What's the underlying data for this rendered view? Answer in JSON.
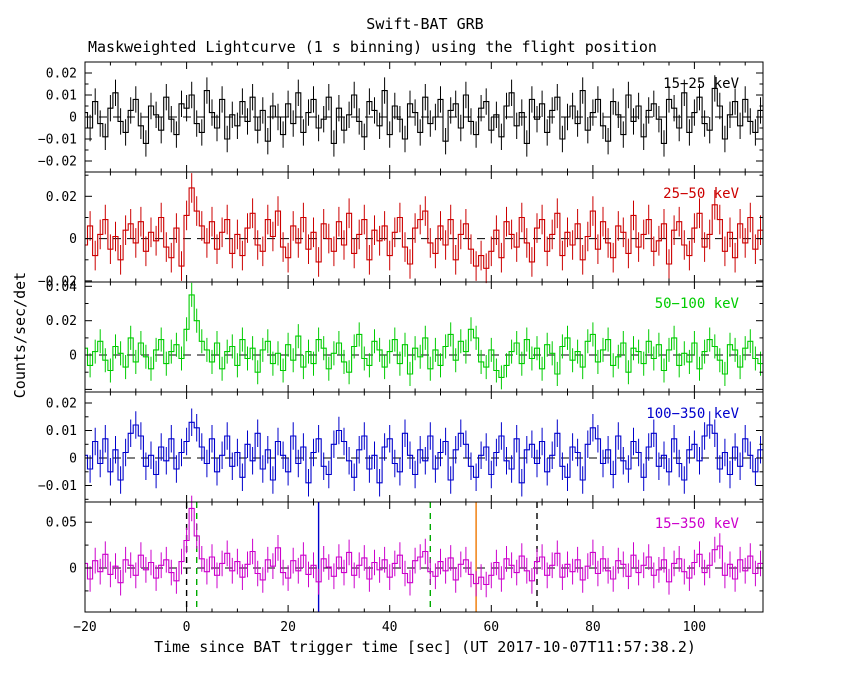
{
  "chart_data": {
    "type": "line",
    "title": "Swift-BAT GRB",
    "subtitle": "Maskweighted Lightcurve (1 s binning) using the flight position",
    "xlabel": "Time since BAT trigger time [sec] (UT 2017-10-07T11:57:38.2)",
    "ylabel": "Counts/sec/det",
    "xlim": [
      -20,
      113.5
    ],
    "x_start": -20,
    "x_step": 1,
    "x_major_ticks": [
      -20,
      0,
      20,
      40,
      60,
      80,
      100
    ],
    "x_minor_step": 5,
    "frame_color": "#000000",
    "zero_line": "dashed",
    "panels": [
      {
        "label": "15-25 keV",
        "color": "#000000",
        "ylim": [
          -0.025,
          0.025
        ],
        "yticks": [
          -0.02,
          -0.01,
          0,
          0.01,
          0.02
        ],
        "err": 0.006,
        "values": [
          0.002,
          -0.005,
          0.007,
          -0.003,
          -0.009,
          0.004,
          0.011,
          -0.002,
          -0.007,
          0.003,
          0.008,
          -0.004,
          -0.012,
          0.005,
          0.001,
          -0.006,
          0.009,
          -0.001,
          -0.008,
          0.006,
          0.004,
          0.01,
          -0.003,
          -0.007,
          0.012,
          0.002,
          -0.005,
          0.008,
          -0.01,
          0.001,
          -0.004,
          0.007,
          -0.002,
          0.009,
          -0.006,
          0.003,
          -0.011,
          0.005,
          0,
          -0.008,
          0.006,
          -0.003,
          0.011,
          -0.007,
          0.002,
          0.008,
          -0.005,
          -0.001,
          0.009,
          -0.012,
          0.004,
          -0.006,
          0.001,
          0.01,
          -0.002,
          -0.009,
          0.007,
          0.003,
          -0.004,
          0.012,
          -0.008,
          0.005,
          -0.001,
          -0.01,
          0.006,
          0.002,
          -0.007,
          0.009,
          -0.003,
          0,
          0.008,
          -0.011,
          0.003,
          0.006,
          -0.005,
          0.01,
          -0.002,
          -0.008,
          0.004,
          0.007,
          -0.006,
          0.001,
          -0.009,
          0.005,
          0.011,
          -0.004,
          0.002,
          -0.012,
          0.008,
          -0.001,
          0.006,
          -0.007,
          0.003,
          0.009,
          -0.01,
          0,
          0.005,
          -0.003,
          0.012,
          -0.006,
          0.002,
          0.008,
          -0.004,
          -0.011,
          0.007,
          0.001,
          -0.008,
          0.01,
          -0.002,
          0.005,
          -0.009,
          0.003,
          0.006,
          -0.001,
          -0.012,
          0.008,
          0.004,
          -0.005,
          0.011,
          -0.007,
          0.002,
          0.009,
          -0.003,
          -0.006,
          0.013,
          0.005,
          -0.01,
          0.001,
          0.007,
          -0.004,
          0.008,
          -0.002,
          -0.007,
          0.003
        ]
      },
      {
        "label": "25-50 keV",
        "color": "#cc0000",
        "ylim": [
          -0.0205,
          0.0315
        ],
        "yticks": [
          -0.02,
          0,
          0.02
        ],
        "err": 0.007,
        "values": [
          -0.003,
          0.006,
          -0.008,
          0.002,
          0.009,
          -0.005,
          0.001,
          -0.01,
          0.004,
          0.007,
          -0.002,
          0.008,
          -0.006,
          0.003,
          -0.001,
          0.01,
          -0.004,
          -0.009,
          0.005,
          -0.013,
          0.011,
          0.024,
          0.013,
          0.006,
          -0.002,
          0.008,
          -0.005,
          0.003,
          0.009,
          -0.007,
          0.002,
          -0.008,
          0.005,
          0.012,
          -0.003,
          -0.006,
          0.009,
          0.001,
          0.013,
          -0.004,
          -0.009,
          0.006,
          -0.002,
          0.01,
          -0.005,
          0.003,
          -0.011,
          0.007,
          0,
          -0.006,
          0.008,
          -0.003,
          0.012,
          -0.007,
          0.002,
          0.009,
          -0.01,
          0.004,
          -0.001,
          0.006,
          -0.008,
          0.003,
          0.01,
          -0.004,
          -0.012,
          0.005,
          0.009,
          0.013,
          -0.002,
          -0.007,
          0.006,
          -0.003,
          0.009,
          -0.01,
          0.002,
          0.007,
          -0.005,
          -0.013,
          -0.008,
          -0.014,
          -0.006,
          0.004,
          -0.009,
          0.008,
          0.002,
          -0.004,
          0.01,
          -0.002,
          -0.011,
          0.005,
          0.009,
          -0.006,
          0.002,
          0.012,
          -0.008,
          0.003,
          -0.003,
          0.007,
          -0.01,
          0.001,
          0.013,
          -0.005,
          0.008,
          -0.002,
          -0.009,
          0.006,
          0.003,
          -0.007,
          0.011,
          -0.004,
          0.002,
          0.009,
          -0.006,
          -0.001,
          0.007,
          -0.012,
          0.004,
          0.008,
          -0.003,
          -0.008,
          0.005,
          0.012,
          -0.004,
          0.002,
          0.016,
          0.009,
          -0.006,
          0.003,
          -0.009,
          0.007,
          -0.002,
          0.01,
          -0.005,
          0.004
        ]
      },
      {
        "label": "50-100 keV",
        "color": "#00cc00",
        "ylim": [
          -0.0215,
          0.0425
        ],
        "yticks": [
          0,
          0.02,
          0.04
        ],
        "err": 0.007,
        "values": [
          0.004,
          -0.006,
          0.002,
          0.008,
          -0.003,
          -0.009,
          0.005,
          0.001,
          -0.007,
          0.01,
          -0.004,
          0.007,
          -0.001,
          -0.008,
          0.003,
          0.009,
          -0.005,
          0.002,
          0.006,
          -0.002,
          0.015,
          0.035,
          0.02,
          0.008,
          0.003,
          -0.004,
          0.007,
          -0.008,
          0.002,
          0.005,
          -0.006,
          0.009,
          -0.002,
          0.004,
          -0.01,
          0.003,
          0.008,
          -0.005,
          0.001,
          -0.009,
          0.006,
          -0.003,
          0.011,
          -0.007,
          0.002,
          -0.005,
          0.009,
          0.004,
          -0.008,
          0.001,
          0.007,
          -0.004,
          -0.01,
          0.005,
          0.012,
          -0.002,
          -0.006,
          0.008,
          0.003,
          -0.007,
          0.002,
          0.009,
          -0.005,
          0.006,
          -0.011,
          0.004,
          -0.001,
          0.01,
          -0.008,
          0.003,
          -0.006,
          0.005,
          0.012,
          -0.003,
          0.008,
          0.002,
          0.015,
          0.01,
          -0.004,
          -0.007,
          0.003,
          -0.009,
          -0.013,
          -0.006,
          0.002,
          0.007,
          -0.005,
          0.009,
          -0.002,
          0.004,
          -0.008,
          0.006,
          0.001,
          -0.011,
          0.005,
          0.01,
          -0.003,
          0.002,
          -0.007,
          0.008,
          0.012,
          -0.004,
          0.003,
          0.009,
          -0.006,
          -0.001,
          0.007,
          -0.01,
          0.004,
          0.002,
          -0.005,
          0.008,
          -0.002,
          0.006,
          -0.009,
          0.003,
          0.01,
          -0.006,
          0.001,
          -0.004,
          0.007,
          -0.008,
          0.002,
          0.009,
          0.005,
          -0.003,
          -0.011,
          0.006,
          0.003,
          -0.007,
          0.004,
          0.008,
          -0.002,
          -0.005
        ]
      },
      {
        "label": "100-350 keV",
        "color": "#0000cc",
        "ylim": [
          -0.016,
          0.024
        ],
        "yticks": [
          -0.01,
          0,
          0.01,
          0.02
        ],
        "err": 0.005,
        "values": [
          0.001,
          -0.004,
          0.006,
          -0.002,
          0.007,
          -0.005,
          0.003,
          -0.008,
          0.002,
          0.009,
          0.012,
          0.008,
          -0.003,
          0.001,
          -0.006,
          0.004,
          -0.001,
          0.007,
          -0.004,
          0.002,
          0.006,
          0.013,
          0.011,
          0.004,
          -0.002,
          0.007,
          -0.005,
          0.001,
          0.008,
          -0.003,
          0.002,
          -0.007,
          0.005,
          -0.001,
          0.009,
          -0.004,
          0.003,
          -0.008,
          0.006,
          0.001,
          -0.005,
          0.008,
          -0.002,
          0.004,
          -0.009,
          0.002,
          0.007,
          -0.003,
          -0.006,
          0.005,
          0.01,
          0.006,
          -0.001,
          -0.007,
          0.003,
          0.008,
          -0.004,
          0.001,
          -0.009,
          0.004,
          0.007,
          -0.002,
          -0.005,
          0.009,
          0.001,
          -0.006,
          0.003,
          -0.001,
          0.008,
          -0.004,
          0.002,
          0.006,
          -0.008,
          0.003,
          0.009,
          0.005,
          -0.003,
          -0.007,
          0.001,
          0.004,
          -0.006,
          0.002,
          0.008,
          -0.001,
          -0.004,
          0.007,
          -0.009,
          0.003,
          0.005,
          -0.002,
          0.006,
          -0.005,
          0.001,
          0.009,
          -0.003,
          -0.007,
          0.004,
          0.002,
          -0.008,
          0.005,
          0.011,
          0.007,
          -0.002,
          0.003,
          -0.006,
          0.008,
          -0.001,
          -0.004,
          0.006,
          0.002,
          -0.007,
          0.004,
          0.009,
          -0.003,
          0.001,
          -0.005,
          0.007,
          -0.002,
          -0.008,
          0.003,
          0.005,
          -0.001,
          0.008,
          0.012,
          0.009,
          -0.004,
          0.002,
          -0.006,
          0.004,
          -0.003,
          0.007,
          0.001,
          -0.005,
          0.003
        ]
      },
      {
        "label": "15-350 keV",
        "color": "#cc00cc",
        "ylim": [
          -0.048,
          0.072
        ],
        "yticks": [
          0,
          0.05
        ],
        "err": 0.014,
        "vlines": [
          {
            "x": 0,
            "color": "#000000",
            "dash": true
          },
          {
            "x": 2,
            "color": "#00aa00",
            "dash": true
          },
          {
            "x": 26,
            "color": "#0000cc",
            "dash": false
          },
          {
            "x": 48,
            "color": "#00aa00",
            "dash": true
          },
          {
            "x": 57,
            "color": "#ee7700",
            "dash": false
          },
          {
            "x": 69,
            "color": "#000000",
            "dash": true
          }
        ],
        "values": [
          0.005,
          -0.012,
          0.008,
          -0.004,
          0.015,
          -0.007,
          0.002,
          -0.016,
          0.009,
          0.003,
          -0.008,
          0.014,
          -0.002,
          0.006,
          -0.011,
          0.003,
          0.009,
          -0.005,
          -0.014,
          0.007,
          0.03,
          0.065,
          0.035,
          0.01,
          -0.004,
          0.012,
          -0.008,
          0.005,
          0.016,
          -0.003,
          0.007,
          -0.01,
          0.004,
          0.018,
          -0.006,
          -0.013,
          0.009,
          0.002,
          0.022,
          -0.005,
          -0.011,
          0.008,
          -0.003,
          0.014,
          -0.007,
          0.003,
          -0.015,
          0.01,
          0.001,
          -0.009,
          0.012,
          -0.005,
          0.017,
          -0.008,
          0.003,
          0.011,
          -0.012,
          0.006,
          -0.002,
          0.009,
          -0.01,
          0.005,
          0.014,
          -0.006,
          -0.016,
          0.008,
          0.012,
          0.018,
          -0.004,
          -0.009,
          0.007,
          -0.003,
          0.011,
          -0.013,
          0.004,
          0.009,
          -0.007,
          -0.017,
          -0.01,
          -0.018,
          -0.008,
          0.006,
          -0.012,
          0.01,
          0.003,
          -0.005,
          0.013,
          -0.003,
          -0.014,
          0.007,
          0.012,
          -0.008,
          0.003,
          0.016,
          -0.01,
          0.004,
          -0.004,
          0.009,
          -0.013,
          0.002,
          0.017,
          -0.006,
          0.01,
          -0.003,
          -0.012,
          0.008,
          0.004,
          -0.009,
          0.014,
          -0.005,
          0.003,
          0.012,
          -0.008,
          -0.002,
          0.009,
          -0.015,
          0.005,
          0.01,
          -0.004,
          -0.011,
          0.006,
          0.015,
          -0.005,
          0.003,
          0.02,
          0.024,
          -0.008,
          0.004,
          -0.012,
          0.009,
          -0.003,
          0.013,
          -0.006,
          0.005
        ]
      }
    ]
  }
}
